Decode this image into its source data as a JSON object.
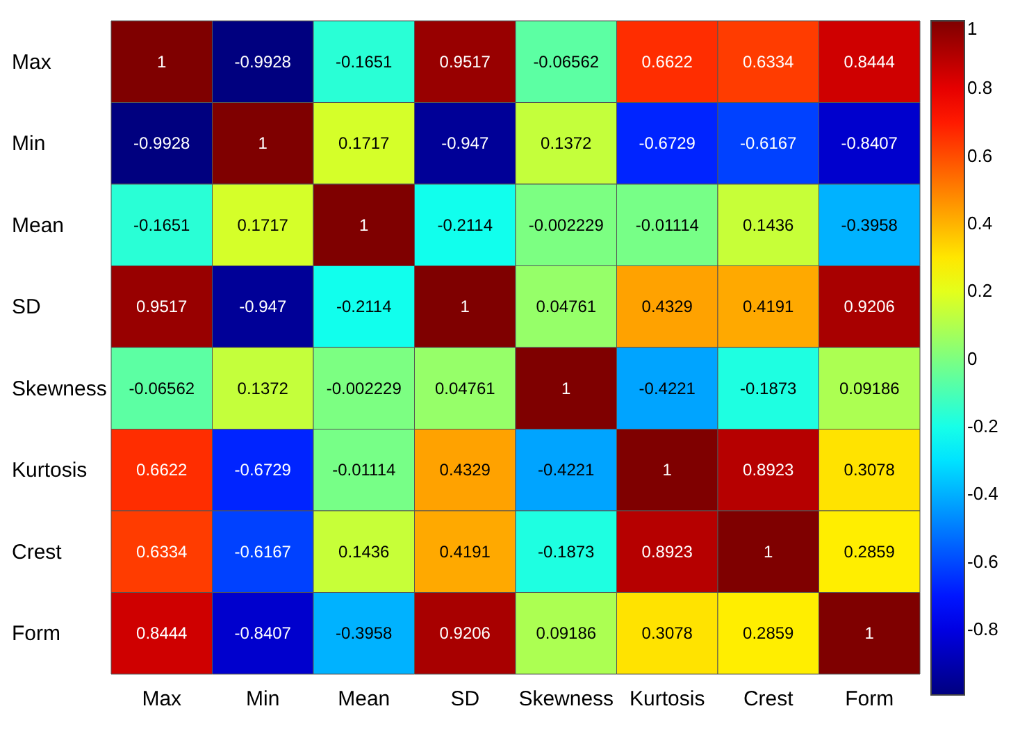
{
  "chart_data": {
    "type": "heatmap",
    "categories": [
      "Max",
      "Min",
      "Mean",
      "SD",
      "Skewness",
      "Kurtosis",
      "Crest",
      "Form"
    ],
    "y_categories": [
      "Max",
      "Min",
      "Mean",
      "SD",
      "Skewness",
      "Kurtosis",
      "Crest",
      "Form"
    ],
    "cells": [
      [
        1,
        -0.9928,
        -0.1651,
        0.9517,
        -0.06562,
        0.6622,
        0.6334,
        0.8444
      ],
      [
        -0.9928,
        1,
        0.1717,
        -0.947,
        0.1372,
        -0.6729,
        -0.6167,
        -0.8407
      ],
      [
        -0.1651,
        0.1717,
        1,
        -0.2114,
        -0.002229,
        -0.01114,
        0.1436,
        -0.3958
      ],
      [
        0.9517,
        -0.947,
        -0.2114,
        1,
        0.04761,
        0.4329,
        0.4191,
        0.9206
      ],
      [
        -0.06562,
        0.1372,
        -0.002229,
        0.04761,
        1,
        -0.4221,
        -0.1873,
        0.09186
      ],
      [
        0.6622,
        -0.6729,
        -0.01114,
        0.4329,
        -0.4221,
        1,
        0.8923,
        0.3078
      ],
      [
        0.6334,
        -0.6167,
        0.1436,
        0.4191,
        -0.1873,
        0.8923,
        1,
        0.2859
      ],
      [
        0.8444,
        -0.8407,
        -0.3958,
        0.9206,
        0.09186,
        0.3078,
        0.2859,
        1
      ]
    ],
    "clim": [
      -0.9928,
      1
    ],
    "cticks": [
      -0.8,
      -0.6,
      -0.4,
      -0.2,
      0,
      0.2,
      0.4,
      0.6,
      0.8,
      1
    ],
    "data_labels": true
  }
}
